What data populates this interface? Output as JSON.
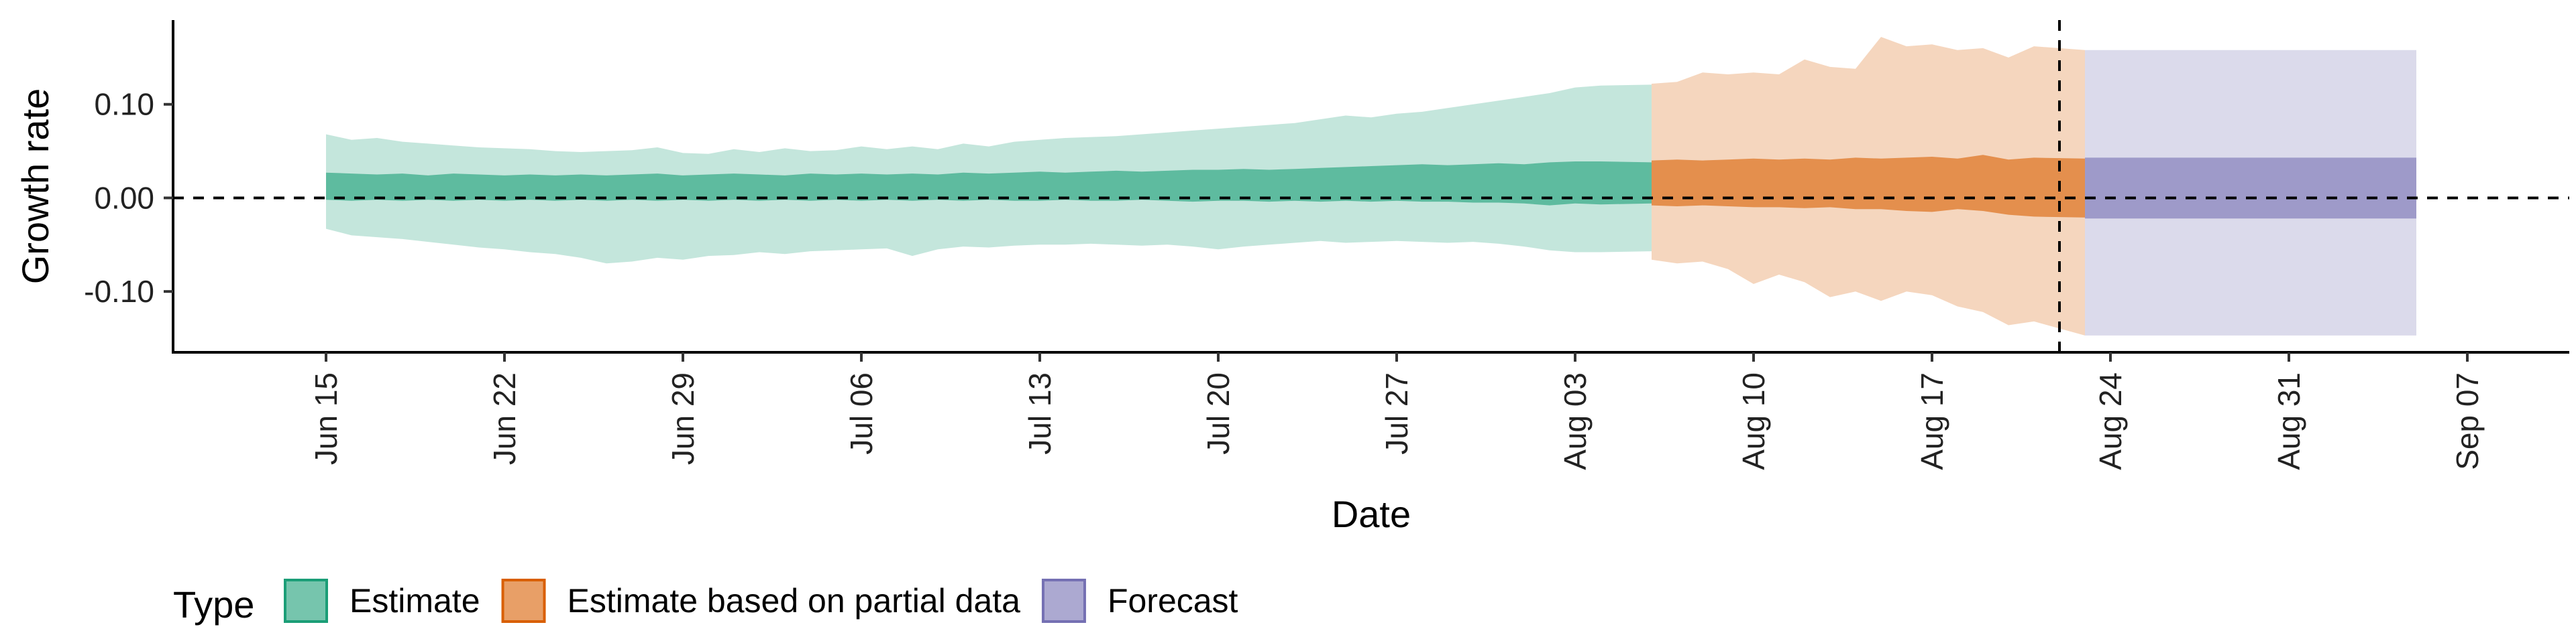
{
  "chart_data": {
    "type": "area",
    "xlabel": "Date",
    "ylabel": "Growth rate",
    "ylim": [
      -0.165,
      0.19
    ],
    "y_ticks": [
      {
        "value": 0.1,
        "label": "0.10"
      },
      {
        "value": 0.0,
        "label": "0.00"
      },
      {
        "value": -0.1,
        "label": "-0.10"
      }
    ],
    "x_range": [
      "2020-06-09",
      "2020-09-11"
    ],
    "x_ticks": [
      {
        "date": "2020-06-15",
        "label": "Jun 15"
      },
      {
        "date": "2020-06-22",
        "label": "Jun 22"
      },
      {
        "date": "2020-06-29",
        "label": "Jun 29"
      },
      {
        "date": "2020-07-06",
        "label": "Jul 06"
      },
      {
        "date": "2020-07-13",
        "label": "Jul 13"
      },
      {
        "date": "2020-07-20",
        "label": "Jul 20"
      },
      {
        "date": "2020-07-27",
        "label": "Jul 27"
      },
      {
        "date": "2020-08-03",
        "label": "Aug 03"
      },
      {
        "date": "2020-08-10",
        "label": "Aug 10"
      },
      {
        "date": "2020-08-17",
        "label": "Aug 17"
      },
      {
        "date": "2020-08-24",
        "label": "Aug 24"
      },
      {
        "date": "2020-08-31",
        "label": "Aug 31"
      },
      {
        "date": "2020-09-07",
        "label": "Sep 07"
      }
    ],
    "reference_lines": {
      "horizontal_y": 0,
      "vertical_date": "2020-08-22"
    },
    "legend": {
      "title": "Type",
      "placement": "bottom-left",
      "entries": [
        {
          "label": "Estimate",
          "color": "#1b9e77"
        },
        {
          "label": "Estimate based on partial data",
          "color": "#d95f02"
        },
        {
          "label": "Forecast",
          "color": "#7570b3"
        }
      ]
    },
    "series": [
      {
        "name": "Estimate",
        "color": "#1b9e77",
        "x": [
          "2020-06-15",
          "2020-06-16",
          "2020-06-17",
          "2020-06-18",
          "2020-06-19",
          "2020-06-20",
          "2020-06-21",
          "2020-06-22",
          "2020-06-23",
          "2020-06-24",
          "2020-06-25",
          "2020-06-26",
          "2020-06-27",
          "2020-06-28",
          "2020-06-29",
          "2020-06-30",
          "2020-07-01",
          "2020-07-02",
          "2020-07-03",
          "2020-07-04",
          "2020-07-05",
          "2020-07-06",
          "2020-07-07",
          "2020-07-08",
          "2020-07-09",
          "2020-07-10",
          "2020-07-11",
          "2020-07-12",
          "2020-07-13",
          "2020-07-14",
          "2020-07-15",
          "2020-07-16",
          "2020-07-17",
          "2020-07-18",
          "2020-07-19",
          "2020-07-20",
          "2020-07-21",
          "2020-07-22",
          "2020-07-23",
          "2020-07-24",
          "2020-07-25",
          "2020-07-26",
          "2020-07-27",
          "2020-07-28",
          "2020-07-29",
          "2020-07-30",
          "2020-07-31",
          "2020-08-01",
          "2020-08-02",
          "2020-08-03",
          "2020-08-04",
          "2020-08-05"
        ],
        "upper90": [
          0.068,
          0.062,
          0.064,
          0.06,
          0.058,
          0.056,
          0.054,
          0.053,
          0.052,
          0.05,
          0.049,
          0.05,
          0.051,
          0.054,
          0.048,
          0.047,
          0.052,
          0.049,
          0.053,
          0.05,
          0.051,
          0.055,
          0.052,
          0.055,
          0.052,
          0.058,
          0.055,
          0.06,
          0.062,
          0.064,
          0.065,
          0.066,
          0.068,
          0.07,
          0.072,
          0.074,
          0.076,
          0.078,
          0.08,
          0.084,
          0.088,
          0.086,
          0.09,
          0.092,
          0.096,
          0.1,
          0.104,
          0.108,
          0.112,
          0.118,
          0.12,
          0.121
        ],
        "upper50": [
          0.027,
          0.026,
          0.025,
          0.026,
          0.024,
          0.026,
          0.025,
          0.024,
          0.025,
          0.024,
          0.025,
          0.024,
          0.025,
          0.026,
          0.024,
          0.025,
          0.026,
          0.025,
          0.024,
          0.026,
          0.025,
          0.026,
          0.025,
          0.026,
          0.025,
          0.027,
          0.026,
          0.027,
          0.028,
          0.027,
          0.028,
          0.029,
          0.028,
          0.029,
          0.03,
          0.03,
          0.031,
          0.03,
          0.031,
          0.032,
          0.033,
          0.034,
          0.035,
          0.036,
          0.035,
          0.036,
          0.037,
          0.036,
          0.038,
          0.039,
          0.039,
          0.038
        ],
        "lower50": [
          -0.002,
          -0.003,
          -0.002,
          -0.003,
          -0.002,
          -0.003,
          -0.002,
          -0.003,
          -0.002,
          -0.003,
          -0.002,
          -0.003,
          -0.002,
          -0.003,
          -0.002,
          -0.003,
          -0.002,
          -0.003,
          -0.002,
          -0.003,
          -0.002,
          -0.003,
          -0.002,
          -0.003,
          -0.002,
          -0.003,
          -0.002,
          -0.003,
          -0.003,
          -0.002,
          -0.003,
          -0.003,
          -0.002,
          -0.003,
          -0.004,
          -0.003,
          -0.003,
          -0.004,
          -0.003,
          -0.004,
          -0.003,
          -0.004,
          -0.003,
          -0.004,
          -0.004,
          -0.005,
          -0.005,
          -0.006,
          -0.008,
          -0.006,
          -0.007,
          -0.006
        ],
        "lower90": [
          -0.033,
          -0.04,
          -0.042,
          -0.044,
          -0.047,
          -0.05,
          -0.053,
          -0.055,
          -0.058,
          -0.06,
          -0.064,
          -0.07,
          -0.068,
          -0.064,
          -0.066,
          -0.062,
          -0.061,
          -0.058,
          -0.06,
          -0.057,
          -0.056,
          -0.055,
          -0.054,
          -0.062,
          -0.055,
          -0.052,
          -0.053,
          -0.051,
          -0.05,
          -0.05,
          -0.049,
          -0.05,
          -0.051,
          -0.05,
          -0.052,
          -0.055,
          -0.052,
          -0.05,
          -0.048,
          -0.046,
          -0.048,
          -0.047,
          -0.046,
          -0.047,
          -0.048,
          -0.047,
          -0.049,
          -0.052,
          -0.056,
          -0.058,
          -0.058,
          -0.057
        ]
      },
      {
        "name": "Estimate based on partial data",
        "color": "#d95f02",
        "x": [
          "2020-08-06",
          "2020-08-07",
          "2020-08-08",
          "2020-08-09",
          "2020-08-10",
          "2020-08-11",
          "2020-08-12",
          "2020-08-13",
          "2020-08-14",
          "2020-08-15",
          "2020-08-16",
          "2020-08-17",
          "2020-08-18",
          "2020-08-19",
          "2020-08-20",
          "2020-08-21",
          "2020-08-22"
        ],
        "upper90": [
          0.122,
          0.124,
          0.134,
          0.132,
          0.134,
          0.132,
          0.148,
          0.14,
          0.138,
          0.172,
          0.162,
          0.164,
          0.158,
          0.16,
          0.15,
          0.162,
          0.158
        ],
        "upper50": [
          0.04,
          0.041,
          0.04,
          0.041,
          0.042,
          0.041,
          0.042,
          0.041,
          0.043,
          0.042,
          0.043,
          0.044,
          0.042,
          0.046,
          0.041,
          0.043,
          0.042
        ],
        "lower50": [
          -0.008,
          -0.009,
          -0.008,
          -0.009,
          -0.01,
          -0.01,
          -0.011,
          -0.01,
          -0.012,
          -0.012,
          -0.014,
          -0.015,
          -0.012,
          -0.014,
          -0.018,
          -0.02,
          -0.021
        ],
        "lower90": [
          -0.066,
          -0.07,
          -0.068,
          -0.076,
          -0.092,
          -0.082,
          -0.09,
          -0.106,
          -0.1,
          -0.11,
          -0.1,
          -0.104,
          -0.116,
          -0.122,
          -0.136,
          -0.132,
          -0.147
        ]
      },
      {
        "name": "Forecast",
        "color": "#7570b3",
        "x": [
          "2020-08-23",
          "2020-09-05"
        ],
        "upper90": [
          0.158,
          0.158
        ],
        "upper50": [
          0.043,
          0.043
        ],
        "lower50": [
          -0.022,
          -0.022
        ],
        "lower90": [
          -0.147,
          -0.147
        ]
      }
    ]
  }
}
